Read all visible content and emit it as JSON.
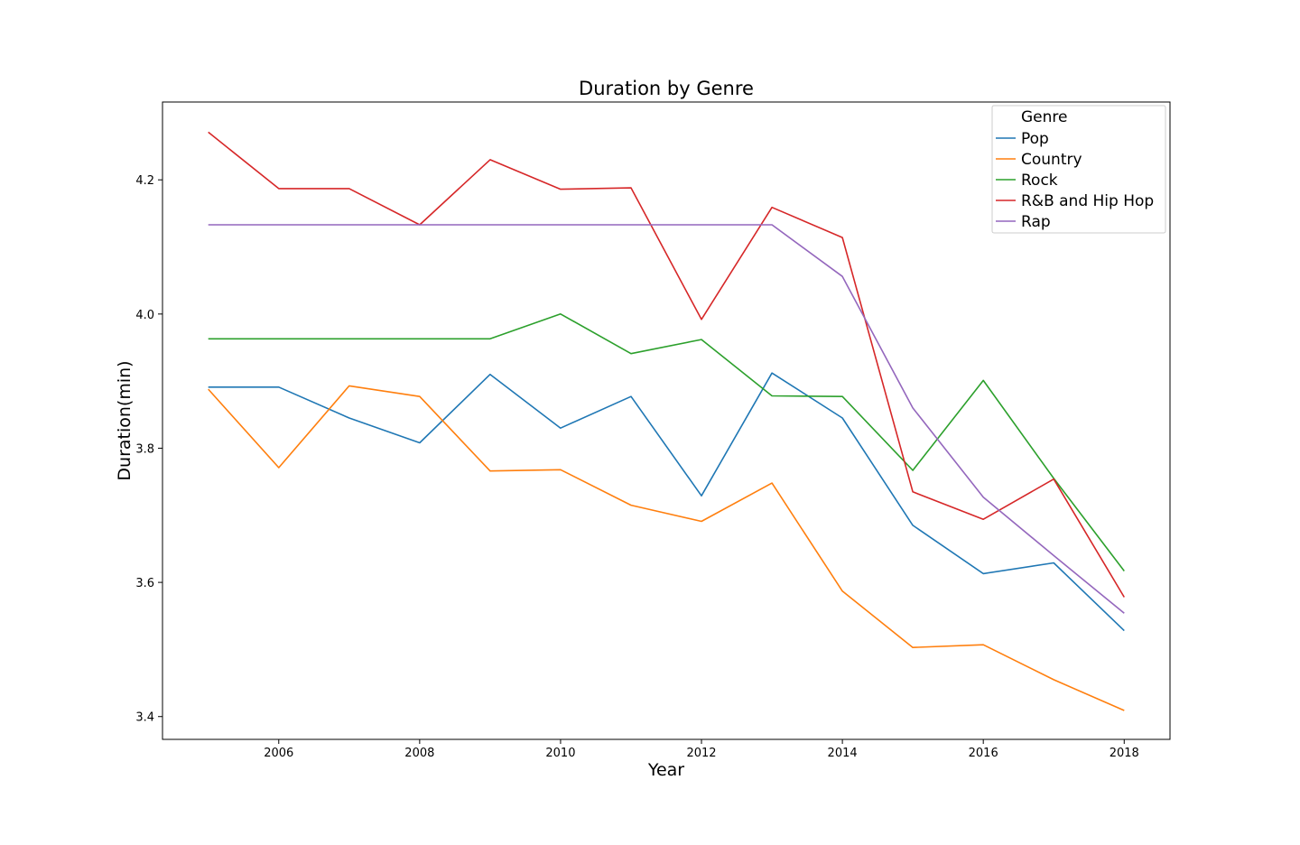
{
  "chart_data": {
    "type": "line",
    "title": "Duration by Genre",
    "xlabel": "Year",
    "ylabel": "Duration(min)",
    "xlim": [
      2004.35,
      2018.65
    ],
    "ylim": [
      3.366,
      4.316
    ],
    "xticks": [
      2006,
      2008,
      2010,
      2012,
      2014,
      2016,
      2018
    ],
    "yticks": [
      3.4,
      3.6,
      3.8,
      4.0,
      4.2
    ],
    "grid": false,
    "legend": {
      "title": "Genre",
      "placement": "top-right"
    },
    "x": [
      2005,
      2006,
      2007,
      2008,
      2009,
      2010,
      2011,
      2012,
      2013,
      2014,
      2015,
      2016,
      2017,
      2018
    ],
    "series": [
      {
        "name": "Pop",
        "color": "#1f77b4",
        "values": [
          3.891,
          3.891,
          3.845,
          3.808,
          3.91,
          3.83,
          3.877,
          3.729,
          3.912,
          3.845,
          3.685,
          3.613,
          3.629,
          3.528
        ]
      },
      {
        "name": "Country",
        "color": "#ff7f0e",
        "values": [
          3.888,
          3.771,
          3.893,
          3.877,
          3.766,
          3.768,
          3.715,
          3.691,
          3.748,
          3.587,
          3.503,
          3.507,
          3.455,
          3.409
        ]
      },
      {
        "name": "Rock",
        "color": "#2ca02c",
        "values": [
          3.963,
          3.963,
          3.963,
          3.963,
          3.963,
          4.0,
          3.941,
          3.962,
          3.878,
          3.877,
          3.767,
          3.901,
          3.755,
          3.617
        ]
      },
      {
        "name": "R&B and Hip Hop",
        "color": "#d62728",
        "values": [
          4.271,
          4.187,
          4.187,
          4.133,
          4.23,
          4.186,
          4.188,
          3.992,
          4.159,
          4.114,
          3.735,
          3.694,
          3.754,
          3.578
        ]
      },
      {
        "name": "Rap",
        "color": "#9467bd",
        "values": [
          4.133,
          4.133,
          4.133,
          4.133,
          4.133,
          4.133,
          4.133,
          4.133,
          4.133,
          4.056,
          3.86,
          3.727,
          3.64,
          3.554
        ]
      }
    ]
  }
}
